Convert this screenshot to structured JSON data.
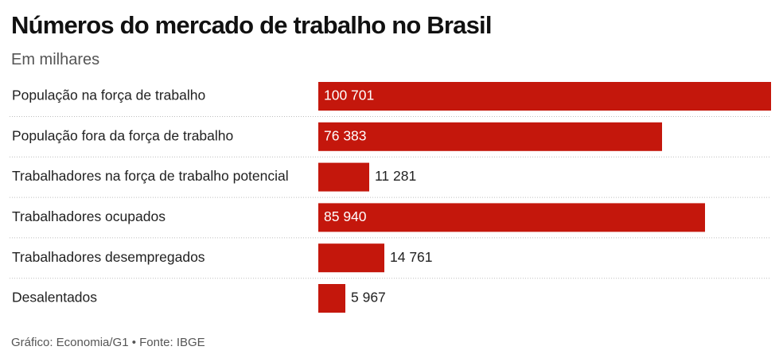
{
  "chart_data": {
    "type": "bar",
    "orientation": "horizontal",
    "title": "Números do mercado de trabalho no Brasil",
    "subtitle": "Em milhares",
    "categories": [
      "População na força de trabalho",
      "População fora da força de trabalho",
      "Trabalhadores na força de trabalho potencial",
      "Trabalhadores ocupados",
      "Trabalhadores desempregados",
      "Desalentados"
    ],
    "values": [
      100701,
      76383,
      11281,
      85940,
      14761,
      5967
    ],
    "value_labels": [
      "100 701",
      "76 383",
      "11 281",
      "85 940",
      "14 761",
      "5 967"
    ],
    "xlim": [
      0,
      100701
    ],
    "grid": false,
    "legend": "none",
    "bar_color": "#c4170c",
    "source": "Gráfico: Economia/G1 • Fonte: IBGE"
  }
}
